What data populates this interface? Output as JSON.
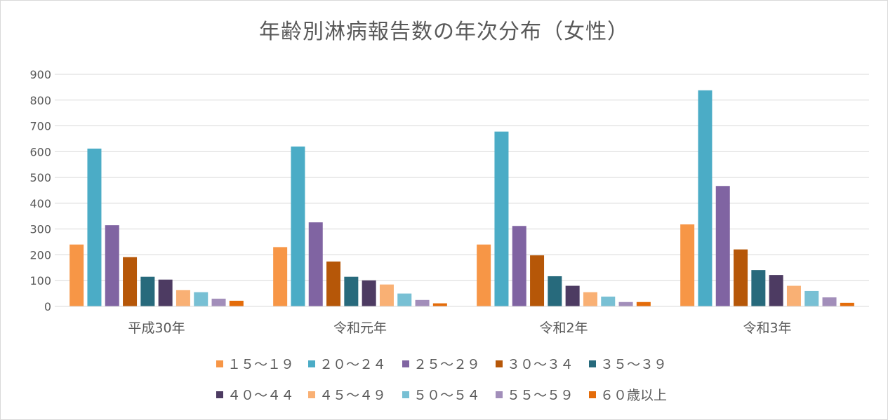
{
  "chart_data": {
    "type": "bar",
    "title": "年齢別淋病報告数の年次分布（女性）",
    "categories": [
      "平成30年",
      "令和元年",
      "令和2年",
      "令和3年"
    ],
    "ylim": [
      0,
      900
    ],
    "yticks": [
      0,
      100,
      200,
      300,
      400,
      500,
      600,
      700,
      800,
      900
    ],
    "grid": true,
    "legend_position": "bottom",
    "series": [
      {
        "name": "１５～１９",
        "color": "#F79646",
        "values": [
          240,
          230,
          240,
          318
        ]
      },
      {
        "name": "２０～２４",
        "color": "#4BACC6",
        "values": [
          612,
          620,
          678,
          838
        ]
      },
      {
        "name": "２５～２９",
        "color": "#8064A2",
        "values": [
          315,
          326,
          312,
          467
        ]
      },
      {
        "name": "３０～３４",
        "color": "#B65708",
        "values": [
          191,
          174,
          198,
          221
        ]
      },
      {
        "name": "３５～３９",
        "color": "#276A7C",
        "values": [
          115,
          115,
          117,
          141
        ]
      },
      {
        "name": "４０～４４",
        "color": "#4D3B62",
        "values": [
          104,
          101,
          80,
          122
        ]
      },
      {
        "name": "４５～４９",
        "color": "#F9B074",
        "values": [
          63,
          85,
          55,
          80
        ]
      },
      {
        "name": "５０～５４",
        "color": "#78C0D4",
        "values": [
          55,
          50,
          38,
          60
        ]
      },
      {
        "name": "５５～５９",
        "color": "#A28EBA",
        "values": [
          30,
          25,
          17,
          35
        ]
      },
      {
        "name": "６０歳以上",
        "color": "#E46C0A",
        "values": [
          22,
          12,
          17,
          14
        ]
      }
    ]
  }
}
